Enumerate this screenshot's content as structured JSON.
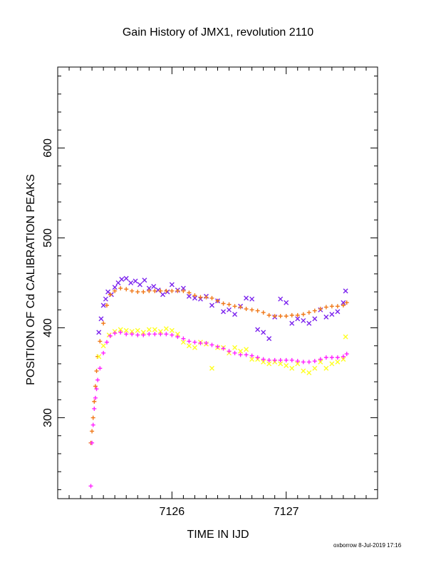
{
  "chart_data": {
    "type": "scatter",
    "title": "Gain History of JMX1, revolution 2110",
    "xlabel": "TIME IN IJD",
    "ylabel": "POSITION OF Cd CALIBRATION PEAKS",
    "xlim": [
      7125.0,
      7127.8
    ],
    "ylim": [
      210,
      690
    ],
    "x_ticks": [
      7126,
      7127
    ],
    "y_ticks": [
      300,
      400,
      500,
      600
    ],
    "grid": false,
    "series": [
      {
        "marker": "x",
        "color": "#7b22ee",
        "x": [
          7125.36,
          7125.38,
          7125.4,
          7125.42,
          7125.44,
          7125.47,
          7125.5,
          7125.53,
          7125.56,
          7125.6,
          7125.64,
          7125.68,
          7125.72,
          7125.76,
          7125.8,
          7125.84,
          7125.88,
          7125.92,
          7125.96,
          7126.0,
          7126.05,
          7126.1,
          7126.15,
          7126.2,
          7126.25,
          7126.3,
          7126.35,
          7126.4,
          7126.45,
          7126.5,
          7126.55,
          7126.6,
          7126.65,
          7126.7,
          7126.75,
          7126.8,
          7126.85,
          7126.9,
          7126.95,
          7127.0,
          7127.05,
          7127.1,
          7127.15,
          7127.2,
          7127.25,
          7127.3,
          7127.35,
          7127.4,
          7127.45,
          7127.5,
          7127.52
        ],
        "y": [
          395,
          410,
          425,
          432,
          440,
          437,
          445,
          450,
          454,
          455,
          450,
          452,
          448,
          453,
          444,
          446,
          442,
          437,
          440,
          448,
          442,
          444,
          435,
          433,
          432,
          435,
          425,
          430,
          418,
          420,
          415,
          424,
          433,
          432,
          398,
          395,
          388,
          412,
          432,
          428,
          405,
          410,
          408,
          405,
          410,
          420,
          412,
          415,
          418,
          428,
          441
        ]
      },
      {
        "marker": "+",
        "color": "#f07818",
        "x": [
          7125.29,
          7125.3,
          7125.31,
          7125.32,
          7125.33,
          7125.34,
          7125.35,
          7125.37,
          7125.4,
          7125.43,
          7125.46,
          7125.5,
          7125.55,
          7125.6,
          7125.65,
          7125.7,
          7125.75,
          7125.8,
          7125.85,
          7125.9,
          7125.95,
          7126.0,
          7126.05,
          7126.1,
          7126.15,
          7126.2,
          7126.25,
          7126.3,
          7126.35,
          7126.4,
          7126.45,
          7126.5,
          7126.55,
          7126.6,
          7126.65,
          7126.7,
          7126.75,
          7126.8,
          7126.85,
          7126.9,
          7126.95,
          7127.0,
          7127.05,
          7127.1,
          7127.15,
          7127.2,
          7127.25,
          7127.3,
          7127.35,
          7127.4,
          7127.45,
          7127.5,
          7127.53
        ],
        "y": [
          272,
          285,
          300,
          318,
          335,
          352,
          368,
          385,
          405,
          425,
          437,
          441,
          444,
          443,
          441,
          440,
          440,
          441,
          441,
          441,
          441,
          441,
          441,
          441,
          439,
          436,
          434,
          434,
          433,
          430,
          427,
          426,
          424,
          423,
          421,
          420,
          419,
          417,
          414,
          413,
          413,
          413,
          414,
          414,
          415,
          417,
          419,
          421,
          423,
          424,
          424,
          425,
          428
        ]
      },
      {
        "marker": "x",
        "color": "#ffff22",
        "x": [
          7125.36,
          7125.4,
          7125.45,
          7125.5,
          7125.55,
          7125.6,
          7125.65,
          7125.7,
          7125.75,
          7125.8,
          7125.85,
          7125.9,
          7125.95,
          7126.0,
          7126.05,
          7126.1,
          7126.15,
          7126.2,
          7126.25,
          7126.3,
          7126.35,
          7126.4,
          7126.45,
          7126.5,
          7126.55,
          7126.6,
          7126.65,
          7126.7,
          7126.75,
          7126.8,
          7126.85,
          7126.9,
          7126.95,
          7127.0,
          7127.05,
          7127.1,
          7127.15,
          7127.2,
          7127.25,
          7127.3,
          7127.35,
          7127.4,
          7127.45,
          7127.5,
          7127.52
        ],
        "y": [
          368,
          380,
          392,
          396,
          398,
          397,
          396,
          397,
          395,
          398,
          398,
          396,
          399,
          397,
          393,
          384,
          380,
          378,
          384,
          382,
          355,
          378,
          378,
          372,
          378,
          374,
          376,
          365,
          365,
          362,
          360,
          362,
          360,
          358,
          355,
          360,
          352,
          350,
          355,
          362,
          355,
          360,
          362,
          365,
          390
        ]
      },
      {
        "marker": "+",
        "color": "#ff22ff",
        "x": [
          7125.29,
          7125.3,
          7125.31,
          7125.32,
          7125.33,
          7125.34,
          7125.35,
          7125.37,
          7125.4,
          7125.43,
          7125.46,
          7125.5,
          7125.55,
          7125.6,
          7125.65,
          7125.7,
          7125.75,
          7125.8,
          7125.85,
          7125.9,
          7125.95,
          7126.0,
          7126.05,
          7126.1,
          7126.15,
          7126.2,
          7126.25,
          7126.3,
          7126.35,
          7126.4,
          7126.45,
          7126.5,
          7126.55,
          7126.6,
          7126.65,
          7126.7,
          7126.75,
          7126.8,
          7126.85,
          7126.9,
          7126.95,
          7127.0,
          7127.05,
          7127.1,
          7127.15,
          7127.2,
          7127.25,
          7127.3,
          7127.35,
          7127.4,
          7127.45,
          7127.5,
          7127.53
        ],
        "y": [
          224,
          272,
          292,
          310,
          322,
          332,
          342,
          355,
          372,
          384,
          391,
          394,
          395,
          393,
          393,
          392,
          392,
          393,
          393,
          393,
          393,
          392,
          390,
          388,
          385,
          384,
          383,
          383,
          381,
          379,
          377,
          374,
          372,
          370,
          370,
          369,
          367,
          365,
          364,
          364,
          364,
          364,
          364,
          363,
          362,
          362,
          363,
          365,
          367,
          367,
          367,
          368,
          371
        ]
      }
    ],
    "footer": "oxborrow  8-Jul-2019 17:16"
  }
}
